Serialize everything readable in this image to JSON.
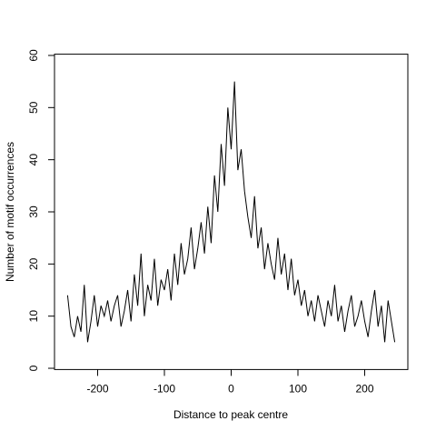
{
  "chart_data": {
    "type": "line",
    "x_label": "Distance to peak centre",
    "y_label": "Number of motif occurrences",
    "x": [
      -245,
      -240,
      -235,
      -230,
      -225,
      -220,
      -215,
      -210,
      -205,
      -200,
      -195,
      -190,
      -185,
      -180,
      -175,
      -170,
      -165,
      -160,
      -155,
      -150,
      -145,
      -140,
      -135,
      -130,
      -125,
      -120,
      -115,
      -110,
      -105,
      -100,
      -95,
      -90,
      -85,
      -80,
      -75,
      -70,
      -65,
      -60,
      -55,
      -50,
      -45,
      -40,
      -35,
      -30,
      -25,
      -20,
      -15,
      -10,
      -5,
      0,
      5,
      10,
      15,
      20,
      25,
      30,
      35,
      40,
      45,
      50,
      55,
      60,
      65,
      70,
      75,
      80,
      85,
      90,
      95,
      100,
      105,
      110,
      115,
      120,
      125,
      130,
      135,
      140,
      145,
      150,
      155,
      160,
      165,
      170,
      175,
      180,
      185,
      190,
      195,
      200,
      205,
      210,
      215,
      220,
      225,
      230,
      235,
      240,
      245
    ],
    "series": [
      {
        "color": "#000000",
        "values": [
          14,
          8,
          6,
          10,
          7,
          16,
          5,
          9,
          14,
          8,
          12,
          10,
          13,
          9,
          12,
          14,
          8,
          11,
          15,
          9,
          18,
          12,
          22,
          10,
          16,
          13,
          21,
          12,
          17,
          15,
          19,
          13,
          22,
          16,
          24,
          18,
          21,
          27,
          19,
          23,
          28,
          22,
          31,
          24,
          37,
          30,
          43,
          35,
          50,
          42,
          55,
          38,
          42,
          34,
          29,
          25,
          33,
          23,
          27,
          19,
          24,
          20,
          17,
          25,
          18,
          22,
          15,
          21,
          14,
          17,
          12,
          15,
          10,
          13,
          9,
          14,
          11,
          8,
          13,
          10,
          16,
          9,
          12,
          7,
          11,
          14,
          8,
          10,
          13,
          9,
          6,
          11,
          15,
          8,
          12,
          5,
          13,
          9,
          5
        ]
      }
    ],
    "xlim": [
      -264.6,
      264.6
    ],
    "xticks": [
      -200,
      -100,
      0,
      100,
      200
    ],
    "ylim": [
      -0.24,
      60.24
    ],
    "yticks": [
      0,
      10,
      20,
      30,
      40,
      50,
      60
    ]
  }
}
